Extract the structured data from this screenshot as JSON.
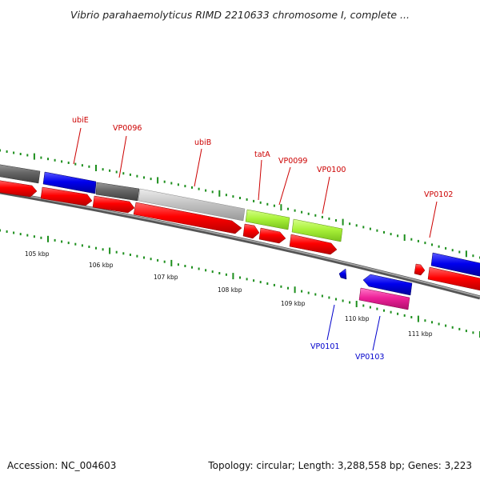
{
  "title": "Vibrio parahaemolyticus RIMD 2210633 chromosome I, complete ...",
  "footer": {
    "accession": "Accession: NC_004603",
    "summary": "Topology: circular; Length: 3,288,558 bp; Genes: 3,223"
  },
  "colors": {
    "cds": "#ff0000",
    "gene_blue": "#0000ee",
    "gene_dark_gray": "#666666",
    "gene_light_gray": "#c0c0c0",
    "gene_green": "#aaf23a",
    "gene_pink": "#ee2299",
    "ticks": "#1d8f1d",
    "label_red": "#cc0000",
    "label_blue": "#0000cc",
    "backbone": "#888888"
  },
  "scale_labels": [
    "105 kbp",
    "106 kbp",
    "107 kbp",
    "108 kbp",
    "109 kbp",
    "110 kbp",
    "111 kbp"
  ],
  "gene_labels": {
    "ubiE": "ubiE",
    "VP0096": "VP0096",
    "ubiB": "ubiB",
    "tatA": "tatA",
    "VP0099": "VP0099",
    "VP0100": "VP0100",
    "VP0102": "VP0102",
    "VP0101": "VP0101",
    "VP0103": "VP0103"
  }
}
